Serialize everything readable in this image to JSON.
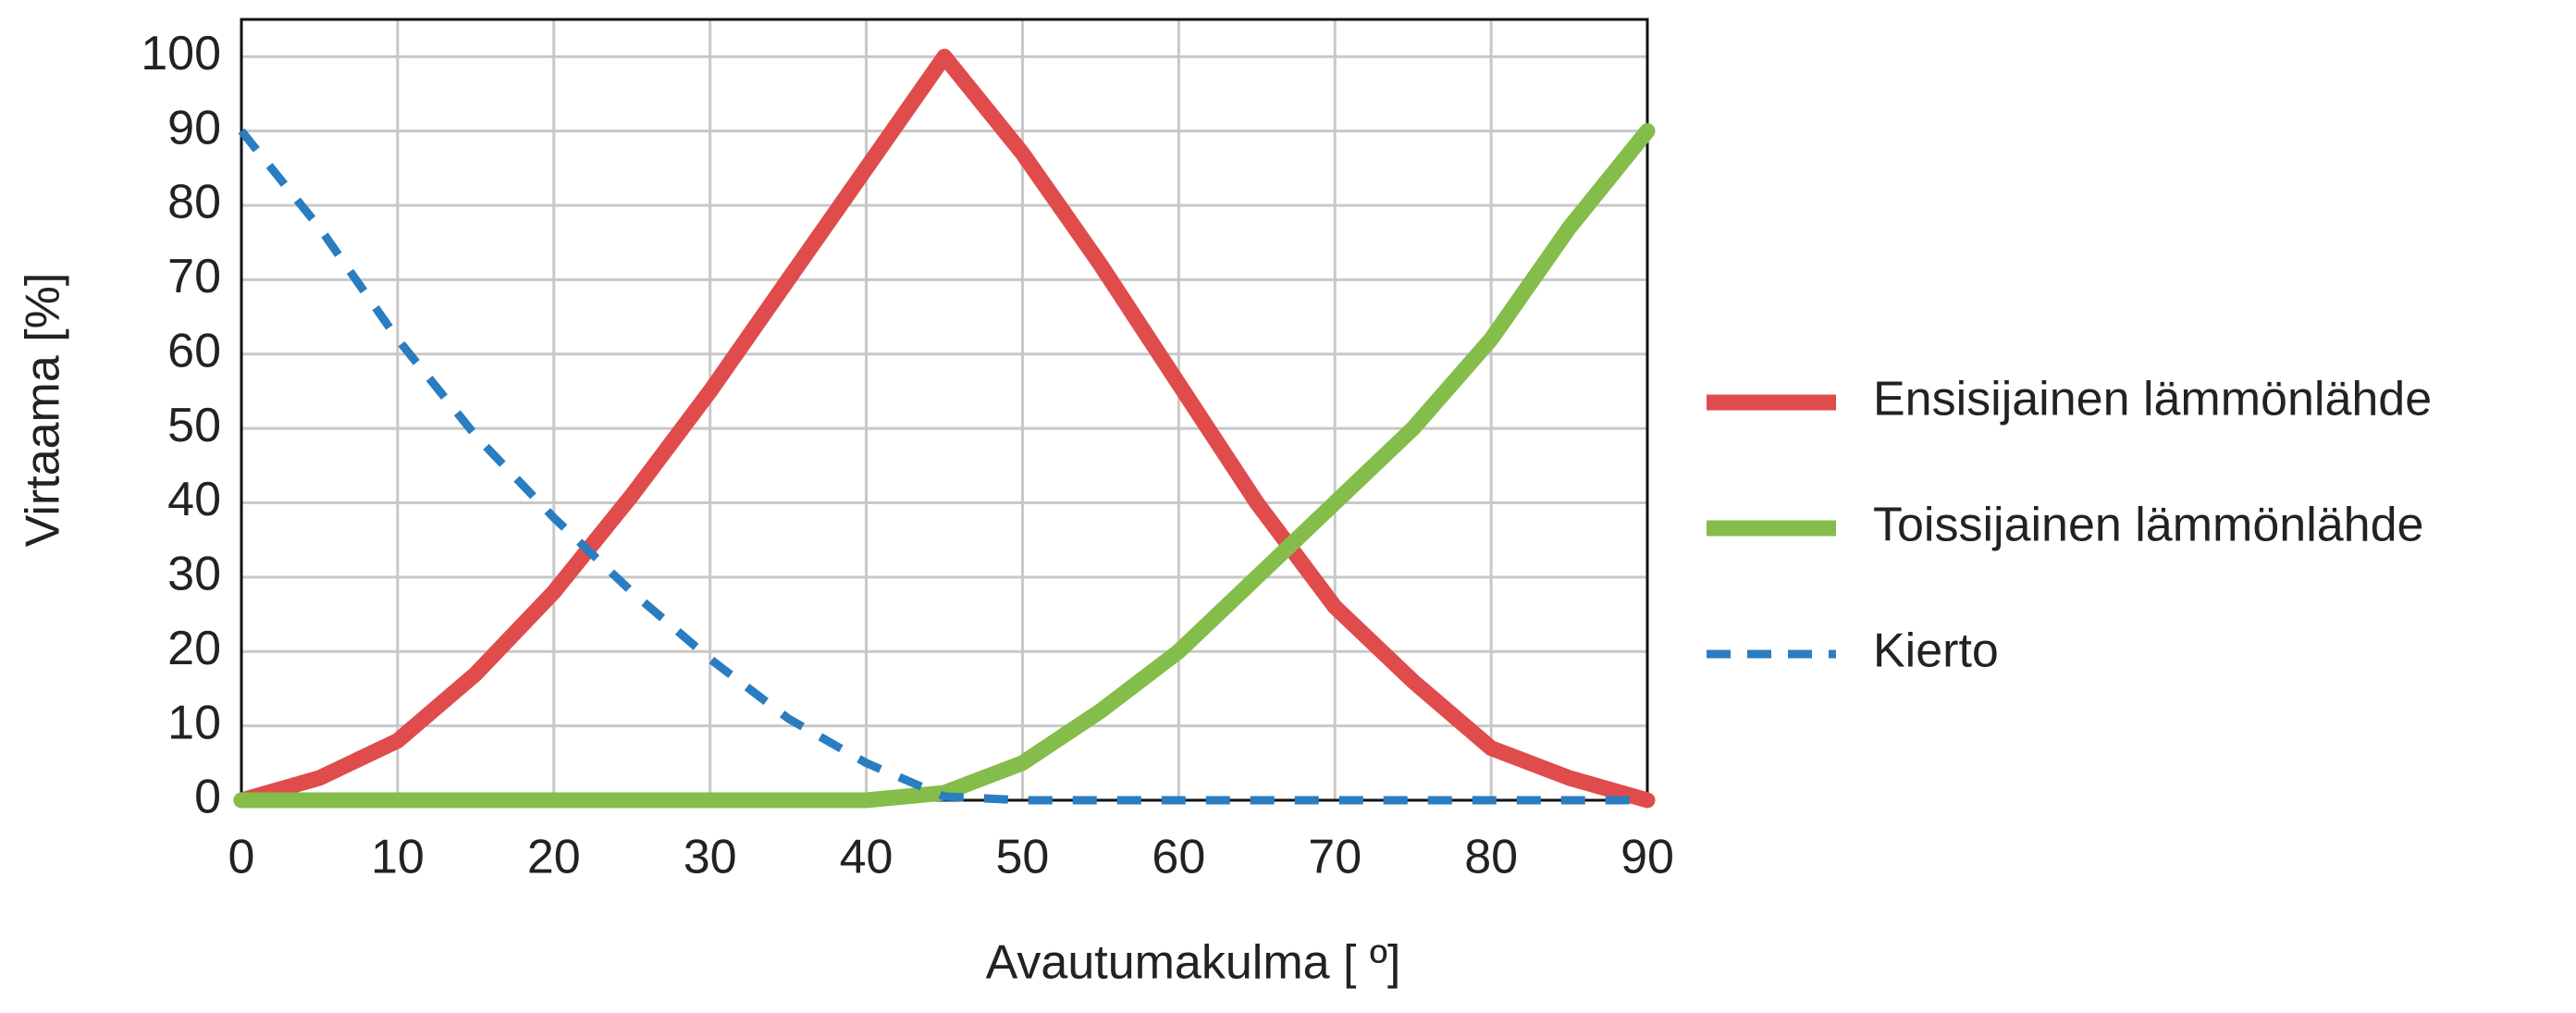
{
  "chart_data": {
    "type": "line",
    "x_label": "Avautumakulma [ º]",
    "y_label": "Virtaama [%]",
    "x": [
      0,
      5,
      10,
      15,
      20,
      25,
      30,
      35,
      40,
      45,
      50,
      55,
      60,
      65,
      70,
      75,
      80,
      85,
      90
    ],
    "series": [
      {
        "name": "Ensisijainen lämmönlähde",
        "color": "#e04b4b",
        "style": "solid",
        "values": [
          0,
          3,
          8,
          17,
          28,
          41,
          55,
          70,
          85,
          100,
          87,
          72,
          56,
          40,
          26,
          16,
          7,
          3,
          0
        ]
      },
      {
        "name": "Toissijainen lämmönlähde",
        "color": "#84bd4a",
        "style": "solid",
        "values": [
          0,
          0,
          0,
          0,
          0,
          0,
          0,
          0,
          0,
          1,
          5,
          12,
          20,
          30,
          40,
          50,
          62,
          77,
          90
        ]
      },
      {
        "name": "Kierto",
        "color": "#2a7dc0",
        "style": "dashed",
        "values": [
          90,
          77,
          62,
          49,
          38,
          28,
          19,
          11,
          5,
          0.5,
          0,
          0,
          0,
          0,
          0,
          0,
          0,
          0,
          0
        ]
      }
    ],
    "xlim": [
      0,
      90
    ],
    "xticks": [
      0,
      10,
      20,
      30,
      40,
      50,
      60,
      70,
      80,
      90
    ],
    "ylim": [
      0,
      105
    ],
    "yticks": [
      0,
      10,
      20,
      30,
      40,
      50,
      60,
      70,
      80,
      90,
      100
    ],
    "grid": true,
    "legend": "right"
  }
}
